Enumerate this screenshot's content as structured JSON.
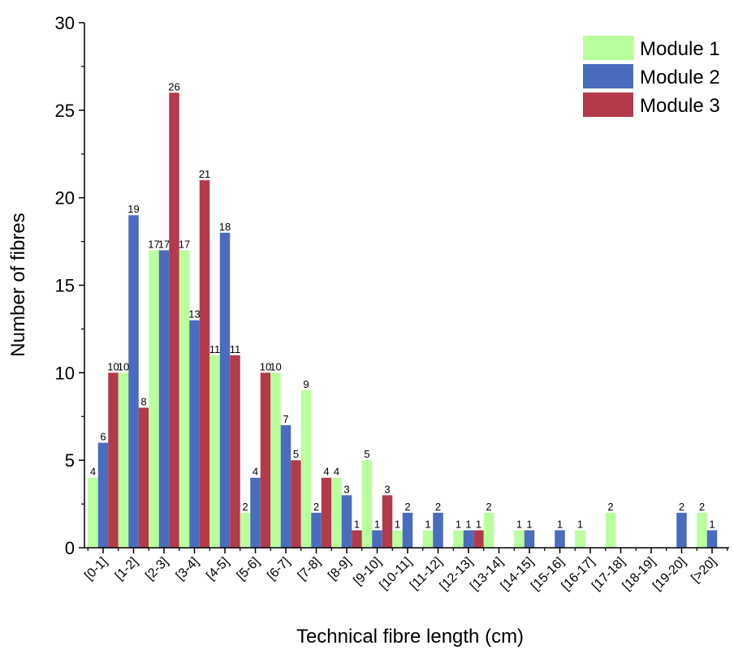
{
  "chart_data": {
    "type": "bar",
    "categories": [
      "[0-1]",
      "[1-2]",
      "[2-3]",
      "[3-4]",
      "[4-5]",
      "[5-6]",
      "[6-7]",
      "[7-8]",
      "[8-9]",
      "[9-10]",
      "[10-11]",
      "[11-12]",
      "[12-13]",
      "[13-14]",
      "[14-15]",
      "[15-16]",
      "[16-17]",
      "[17-18]",
      "[18-19]",
      "[19-20]",
      "[>20]"
    ],
    "series": [
      {
        "name": "Module 1",
        "color": "#b9ff9e",
        "values": [
          4,
          10,
          17,
          17,
          11,
          2,
          10,
          9,
          4,
          5,
          1,
          1,
          1,
          2,
          1,
          0,
          1,
          2,
          0,
          0,
          2
        ]
      },
      {
        "name": "Module 2",
        "color": "#4a6cbf",
        "values": [
          6,
          19,
          17,
          13,
          18,
          4,
          7,
          2,
          3,
          1,
          2,
          2,
          1,
          0,
          1,
          1,
          0,
          0,
          0,
          2,
          1
        ]
      },
      {
        "name": "Module 3",
        "color": "#b23a4a",
        "values": [
          10,
          8,
          26,
          21,
          11,
          10,
          5,
          4,
          1,
          3,
          0,
          0,
          1,
          0,
          0,
          0,
          0,
          0,
          0,
          0,
          0
        ]
      }
    ],
    "xlabel": "Technical fibre length (cm)",
    "ylabel": "Number of fibres",
    "ylim": [
      0,
      30
    ],
    "yticks": [
      0,
      5,
      10,
      15,
      20,
      25,
      30
    ],
    "grid": false,
    "legend": "top-right"
  }
}
